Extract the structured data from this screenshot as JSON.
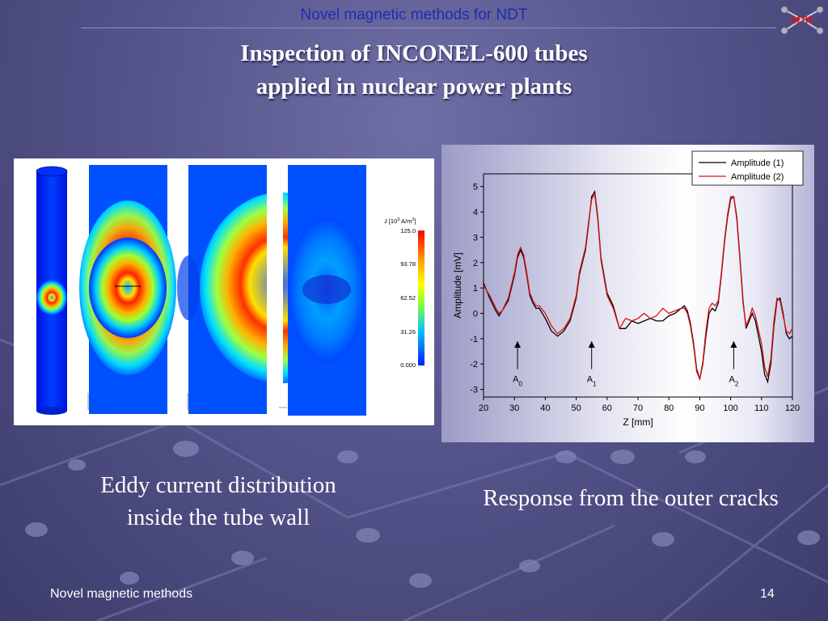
{
  "header": {
    "text": "Novel magnetic methods for NDT",
    "logo_text": "MTA"
  },
  "title": {
    "line1": "Inspection of INCONEL-600 tubes",
    "line2": "applied in nuclear power plants"
  },
  "left_figure": {
    "colorbar_title": "J [10",
    "colorbar_exp": "3",
    "colorbar_unit": " A/m",
    "colorbar_unit_exp": "2",
    "colorbar_close": "]",
    "colorbar_ticks": [
      "125.0",
      "93.78",
      "62.52",
      "31.26",
      "0.000"
    ]
  },
  "chart_data": {
    "type": "line",
    "xlabel": "Z [mm]",
    "ylabel": "Amplitude [mV]",
    "xlim": [
      20,
      120
    ],
    "ylim": [
      -3.3,
      5.5
    ],
    "xticks": [
      20,
      30,
      40,
      50,
      60,
      70,
      80,
      90,
      100,
      110,
      120
    ],
    "yticks": [
      5,
      4,
      3,
      2,
      1,
      0,
      -1,
      -2,
      -3
    ],
    "legend_placement": "top-right",
    "series": [
      {
        "name": "Amplitude (1)",
        "color": "#000000",
        "x": [
          20,
          22,
          24,
          25,
          26,
          28,
          30,
          31,
          32,
          33,
          34,
          35,
          36,
          37,
          38,
          40,
          42,
          44,
          46,
          48,
          50,
          51,
          52,
          53,
          54,
          55,
          56,
          57,
          58,
          60,
          62,
          64,
          66,
          68,
          70,
          72,
          74,
          76,
          78,
          80,
          82,
          84,
          85,
          86,
          87,
          88,
          89,
          90,
          91,
          92,
          93,
          94,
          95,
          96,
          97,
          98,
          99,
          100,
          101,
          102,
          103,
          104,
          105,
          106,
          107,
          108,
          110,
          111,
          112,
          113,
          114,
          115,
          116,
          117,
          118,
          119,
          120
        ],
        "y": [
          1.2,
          0.6,
          0.1,
          -0.1,
          0.1,
          0.5,
          1.5,
          2.2,
          2.5,
          2.2,
          1.5,
          0.7,
          0.4,
          0.2,
          0.2,
          -0.2,
          -0.7,
          -0.9,
          -0.7,
          -0.3,
          0.6,
          1.5,
          2.0,
          2.5,
          3.5,
          4.6,
          4.8,
          3.8,
          2.2,
          0.8,
          0.3,
          -0.6,
          -0.6,
          -0.3,
          -0.4,
          -0.3,
          -0.2,
          -0.3,
          -0.3,
          -0.1,
          0.0,
          0.2,
          0.3,
          0.1,
          -0.4,
          -1.2,
          -2.2,
          -2.6,
          -2.0,
          -0.9,
          0.0,
          0.2,
          0.1,
          0.4,
          1.5,
          2.8,
          3.8,
          4.5,
          4.6,
          3.8,
          2.2,
          0.5,
          -0.6,
          -0.3,
          0.0,
          -0.3,
          -1.5,
          -2.4,
          -2.7,
          -2.0,
          -0.5,
          0.5,
          0.6,
          0.0,
          -0.8,
          -1.0,
          -0.9
        ]
      },
      {
        "name": "Amplitude (2)",
        "color": "#e01010",
        "x": [
          20,
          22,
          24,
          25,
          26,
          28,
          30,
          31,
          32,
          33,
          34,
          35,
          36,
          37,
          38,
          40,
          42,
          44,
          46,
          48,
          50,
          51,
          52,
          53,
          54,
          55,
          56,
          57,
          58,
          60,
          62,
          64,
          66,
          68,
          70,
          72,
          74,
          76,
          78,
          80,
          82,
          84,
          85,
          86,
          87,
          88,
          89,
          90,
          91,
          92,
          93,
          94,
          95,
          96,
          97,
          98,
          99,
          100,
          101,
          102,
          103,
          104,
          105,
          106,
          107,
          108,
          110,
          111,
          112,
          113,
          114,
          115,
          116,
          117,
          118,
          119,
          120
        ],
        "y": [
          1.1,
          0.7,
          0.2,
          0.0,
          0.1,
          0.6,
          1.6,
          2.3,
          2.6,
          2.3,
          1.6,
          0.8,
          0.5,
          0.3,
          0.3,
          0.0,
          -0.5,
          -0.8,
          -0.6,
          -0.2,
          0.7,
          1.6,
          2.1,
          2.6,
          3.6,
          4.5,
          4.7,
          3.7,
          2.1,
          0.7,
          0.2,
          -0.6,
          -0.2,
          -0.3,
          -0.2,
          0.0,
          -0.2,
          -0.1,
          0.2,
          0.0,
          0.1,
          0.2,
          0.2,
          0.0,
          -0.5,
          -1.3,
          -2.3,
          -2.6,
          -1.9,
          -0.7,
          0.2,
          0.4,
          0.3,
          0.5,
          1.6,
          2.9,
          3.9,
          4.6,
          4.6,
          3.7,
          2.1,
          0.4,
          -0.5,
          -0.2,
          0.2,
          -0.1,
          -1.2,
          -2.1,
          -2.5,
          -1.8,
          -0.3,
          0.6,
          0.5,
          -0.1,
          -0.7,
          -0.8,
          -0.6
        ]
      }
    ],
    "annotations": [
      {
        "label": "A",
        "sub": "0",
        "x": 31
      },
      {
        "label": "A",
        "sub": "1",
        "x": 55
      },
      {
        "label": "A",
        "sub": "2",
        "x": 101
      }
    ]
  },
  "captions": {
    "left_line1": "Eddy current distribution",
    "left_line2": "inside the tube wall",
    "right": "Response from the outer cracks"
  },
  "footer": {
    "left": "Novel magnetic methods",
    "page": "14"
  }
}
